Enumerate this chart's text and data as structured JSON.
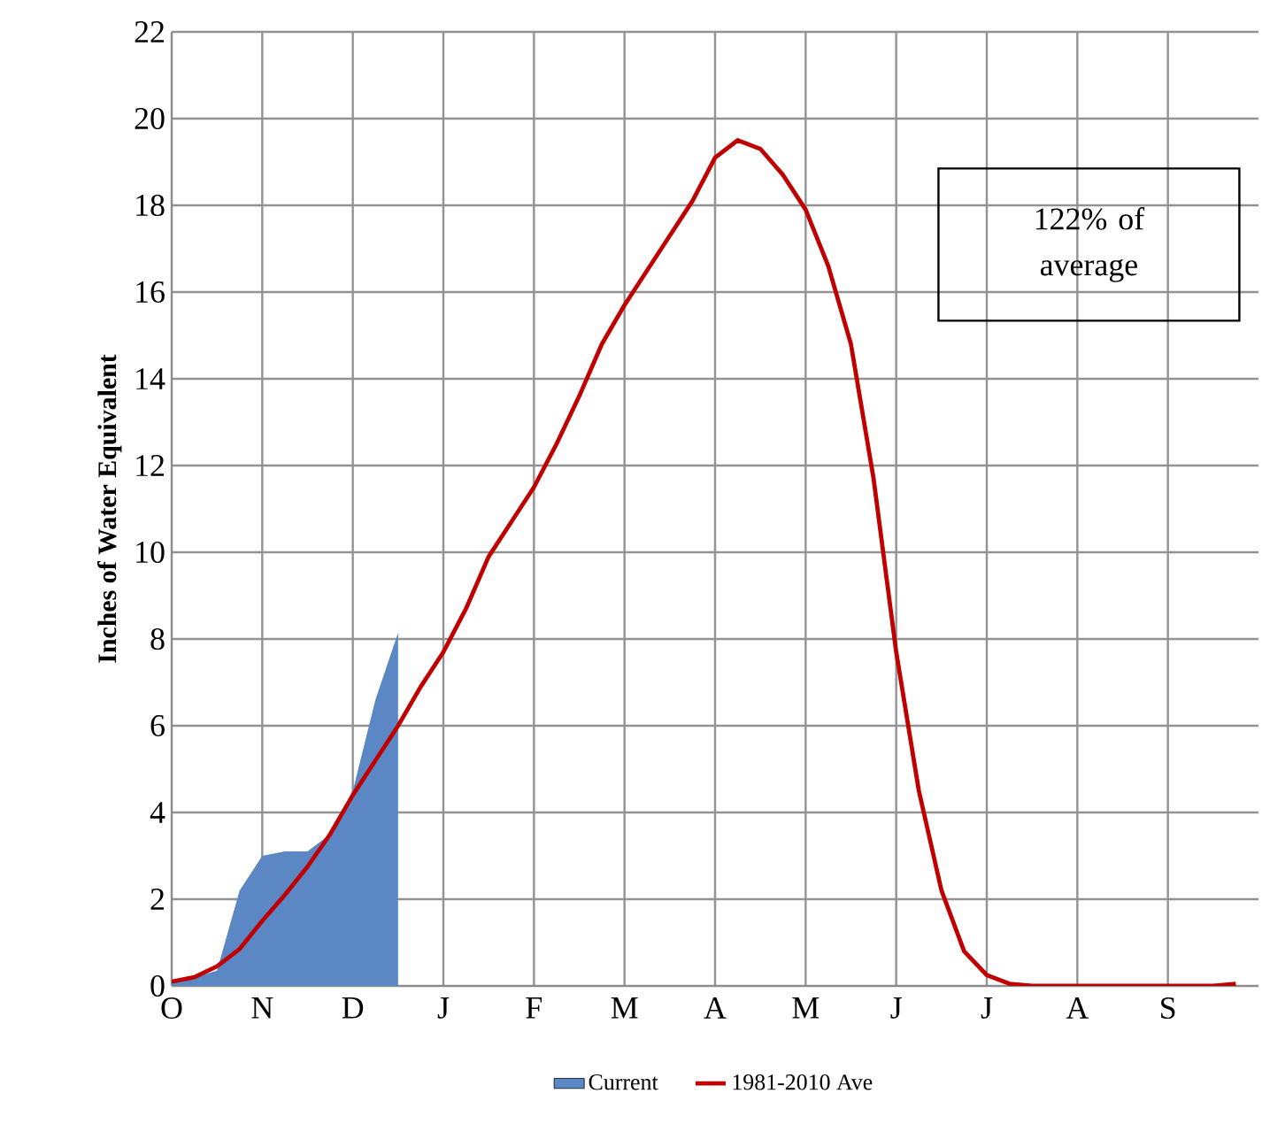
{
  "chart_data": {
    "type": "area",
    "ylabel": "Inches of Water Equivalent",
    "annotations": [
      "122% of average"
    ],
    "categories": [
      "O",
      null,
      null,
      null,
      "N",
      null,
      null,
      null,
      "D",
      null,
      null,
      null,
      "J",
      null,
      null,
      null,
      "F",
      null,
      null,
      null,
      "M",
      null,
      null,
      null,
      "A",
      null,
      null,
      null,
      "M",
      null,
      null,
      null,
      "J",
      null,
      null,
      null,
      "J",
      null,
      null,
      null,
      "A",
      null,
      null,
      null,
      "S",
      null,
      null,
      null
    ],
    "ylim": [
      0,
      22
    ],
    "yticks": [
      0,
      2,
      4,
      6,
      8,
      10,
      12,
      14,
      16,
      18,
      20,
      22
    ],
    "grid": true,
    "legend": "bottom",
    "series": [
      {
        "name": "Current",
        "color": "#5b87c5",
        "values": [
          0.1,
          0.2,
          0.35,
          2.2,
          3.0,
          3.1,
          3.1,
          3.5,
          4.5,
          6.6,
          8.15,
          null,
          null,
          null,
          null,
          null,
          null,
          null,
          null,
          null,
          null,
          null,
          null,
          null,
          null,
          null,
          null,
          null,
          null,
          null,
          null,
          null,
          null,
          null,
          null,
          null,
          null,
          null,
          null,
          null,
          null,
          null,
          null,
          null,
          null,
          null,
          null,
          null
        ]
      },
      {
        "name": "1981-2010 Ave",
        "type": "line",
        "color": "#c00000",
        "values": [
          0.1,
          0.2,
          0.45,
          0.85,
          1.5,
          2.1,
          2.75,
          3.5,
          4.4,
          5.2,
          6.0,
          6.9,
          7.7,
          8.7,
          9.9,
          10.7,
          11.5,
          12.5,
          13.6,
          14.8,
          15.7,
          16.5,
          17.3,
          18.1,
          19.1,
          19.5,
          19.3,
          18.7,
          17.9,
          16.6,
          14.8,
          11.7,
          7.7,
          4.5,
          2.2,
          0.8,
          0.25,
          0.05,
          0,
          0,
          0,
          0,
          0,
          0,
          0,
          0,
          0,
          0.05
        ]
      }
    ]
  }
}
